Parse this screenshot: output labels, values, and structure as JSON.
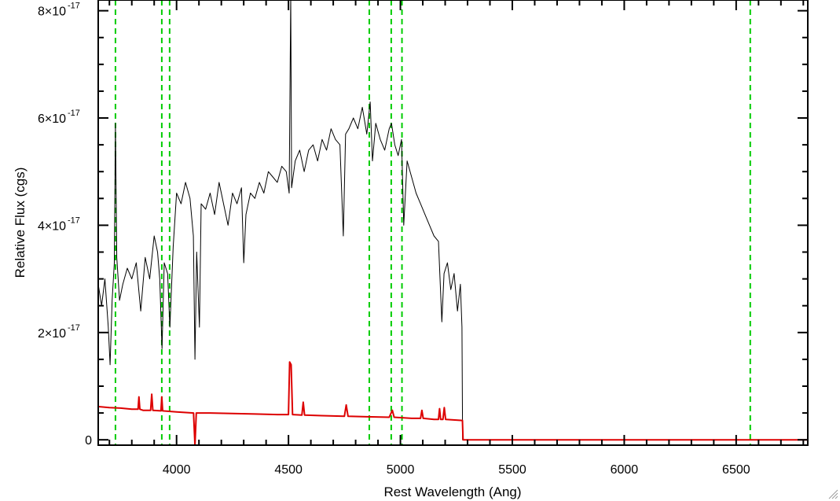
{
  "chart_data": {
    "type": "line",
    "title": "",
    "xlabel": "Rest Wavelength (Ang)",
    "ylabel": "Relative Flux (cgs)",
    "xlim": [
      3650,
      6820
    ],
    "ylim": [
      -1e-18,
      8.2e-17
    ],
    "x_ticks": [
      4000,
      4500,
      5000,
      5500,
      6000,
      6500
    ],
    "x_tick_labels": [
      "4000",
      "4500",
      "5000",
      "5500",
      "6000",
      "6500"
    ],
    "y_ticks": [
      0,
      2e-17,
      4e-17,
      6e-17,
      8e-17
    ],
    "y_tick_labels": [
      {
        "mant": "0",
        "exp": ""
      },
      {
        "mant": "2×10",
        "exp": "-17"
      },
      {
        "mant": "4×10",
        "exp": "-17"
      },
      {
        "mant": "6×10",
        "exp": "-17"
      },
      {
        "mant": "8×10",
        "exp": "-17"
      }
    ],
    "x_minor_step": 100,
    "y_minor_step": 5e-18,
    "grid": false,
    "reference_lines": {
      "color": "#00cc00",
      "style": "dashed",
      "x": [
        3727,
        3934,
        3969,
        4861,
        4959,
        5007,
        6563
      ]
    },
    "series": [
      {
        "color": "#000000",
        "points": [
          [
            3650,
            2.9e-17
          ],
          [
            3665,
            2.5e-17
          ],
          [
            3680,
            3e-17
          ],
          [
            3695,
            2.1e-17
          ],
          [
            3703,
            1.4e-17
          ],
          [
            3712,
            2.6e-17
          ],
          [
            3722,
            3.3e-17
          ],
          [
            3727,
            5.9e-17
          ],
          [
            3733,
            3.4e-17
          ],
          [
            3745,
            2.6e-17
          ],
          [
            3760,
            2.9e-17
          ],
          [
            3780,
            3.2e-17
          ],
          [
            3800,
            3e-17
          ],
          [
            3820,
            3.3e-17
          ],
          [
            3840,
            2.4e-17
          ],
          [
            3860,
            3.4e-17
          ],
          [
            3880,
            3e-17
          ],
          [
            3900,
            3.8e-17
          ],
          [
            3915,
            3.5e-17
          ],
          [
            3925,
            3e-17
          ],
          [
            3935,
            1.7e-17
          ],
          [
            3945,
            3.3e-17
          ],
          [
            3960,
            3.1e-17
          ],
          [
            3970,
            2.1e-17
          ],
          [
            3985,
            3.6e-17
          ],
          [
            4000,
            4.6e-17
          ],
          [
            4020,
            4.4e-17
          ],
          [
            4040,
            4.8e-17
          ],
          [
            4060,
            4.5e-17
          ],
          [
            4075,
            3.8e-17
          ],
          [
            4082,
            1.5e-17
          ],
          [
            4090,
            3.5e-17
          ],
          [
            4102,
            2.1e-17
          ],
          [
            4110,
            4.4e-17
          ],
          [
            4130,
            4.3e-17
          ],
          [
            4150,
            4.6e-17
          ],
          [
            4170,
            4.2e-17
          ],
          [
            4190,
            4.8e-17
          ],
          [
            4210,
            4.4e-17
          ],
          [
            4230,
            4e-17
          ],
          [
            4250,
            4.6e-17
          ],
          [
            4270,
            4.4e-17
          ],
          [
            4290,
            4.7e-17
          ],
          [
            4300,
            3.3e-17
          ],
          [
            4310,
            4.2e-17
          ],
          [
            4330,
            4.6e-17
          ],
          [
            4350,
            4.5e-17
          ],
          [
            4370,
            4.8e-17
          ],
          [
            4390,
            4.6e-17
          ],
          [
            4410,
            5e-17
          ],
          [
            4430,
            4.9e-17
          ],
          [
            4450,
            4.8e-17
          ],
          [
            4470,
            5.1e-17
          ],
          [
            4490,
            5e-17
          ],
          [
            4503,
            4.6e-17
          ],
          [
            4510,
            8.3e-17
          ],
          [
            4514,
            4.7e-17
          ],
          [
            4530,
            5.2e-17
          ],
          [
            4550,
            5.4e-17
          ],
          [
            4570,
            5e-17
          ],
          [
            4590,
            5.4e-17
          ],
          [
            4610,
            5.5e-17
          ],
          [
            4630,
            5.2e-17
          ],
          [
            4650,
            5.6e-17
          ],
          [
            4670,
            5.4e-17
          ],
          [
            4690,
            5.8e-17
          ],
          [
            4710,
            5.6e-17
          ],
          [
            4730,
            5.5e-17
          ],
          [
            4745,
            3.8e-17
          ],
          [
            4755,
            5.7e-17
          ],
          [
            4770,
            5.8e-17
          ],
          [
            4790,
            6e-17
          ],
          [
            4810,
            5.8e-17
          ],
          [
            4830,
            6.2e-17
          ],
          [
            4850,
            5.7e-17
          ],
          [
            4865,
            6.3e-17
          ],
          [
            4875,
            5.2e-17
          ],
          [
            4890,
            5.9e-17
          ],
          [
            4910,
            5.6e-17
          ],
          [
            4930,
            5.4e-17
          ],
          [
            4950,
            5.8e-17
          ],
          [
            4960,
            5.9e-17
          ],
          [
            4975,
            5.5e-17
          ],
          [
            4990,
            5.3e-17
          ],
          [
            5005,
            5.6e-17
          ],
          [
            5015,
            4e-17
          ],
          [
            5030,
            5.2e-17
          ],
          [
            5050,
            4.9e-17
          ],
          [
            5070,
            4.6e-17
          ],
          [
            5090,
            4.4e-17
          ],
          [
            5110,
            4.2e-17
          ],
          [
            5130,
            4e-17
          ],
          [
            5150,
            3.8e-17
          ],
          [
            5170,
            3.7e-17
          ],
          [
            5185,
            2.2e-17
          ],
          [
            5195,
            3.1e-17
          ],
          [
            5210,
            3.3e-17
          ],
          [
            5225,
            2.8e-17
          ],
          [
            5240,
            3.1e-17
          ],
          [
            5255,
            2.4e-17
          ],
          [
            5268,
            2.9e-17
          ],
          [
            5275,
            2.1e-17
          ],
          [
            5278,
            0.0
          ],
          [
            6820,
            0.0
          ]
        ]
      },
      {
        "color": "#dd0000",
        "points": [
          [
            3650,
            6.2e-18
          ],
          [
            3700,
            6e-18
          ],
          [
            3750,
            5.9e-18
          ],
          [
            3800,
            5.7e-18
          ],
          [
            3828,
            5.7e-18
          ],
          [
            3832,
            8e-18
          ],
          [
            3836,
            5.7e-18
          ],
          [
            3850,
            5.5e-18
          ],
          [
            3884,
            5.5e-18
          ],
          [
            3889,
            8.5e-18
          ],
          [
            3894,
            5.5e-18
          ],
          [
            3930,
            5.4e-18
          ],
          [
            3934,
            8e-18
          ],
          [
            3938,
            5.4e-18
          ],
          [
            4000,
            5.2e-18
          ],
          [
            4076,
            5e-18
          ],
          [
            4082,
            -1e-18
          ],
          [
            4088,
            5e-18
          ],
          [
            4150,
            5e-18
          ],
          [
            4250,
            4.9e-18
          ],
          [
            4350,
            4.8e-18
          ],
          [
            4450,
            4.7e-18
          ],
          [
            4500,
            4.7e-18
          ],
          [
            4505,
            1.45e-17
          ],
          [
            4512,
            1.4e-17
          ],
          [
            4518,
            4.7e-18
          ],
          [
            4560,
            4.6e-18
          ],
          [
            4566,
            7e-18
          ],
          [
            4572,
            4.6e-18
          ],
          [
            4650,
            4.5e-18
          ],
          [
            4750,
            4.4e-18
          ],
          [
            4758,
            6.5e-18
          ],
          [
            4766,
            4.4e-18
          ],
          [
            4850,
            4.3e-18
          ],
          [
            4950,
            4.2e-18
          ],
          [
            4964,
            5.5e-18
          ],
          [
            4972,
            4.2e-18
          ],
          [
            5050,
            4e-18
          ],
          [
            5090,
            4e-18
          ],
          [
            5096,
            5.5e-18
          ],
          [
            5102,
            4e-18
          ],
          [
            5150,
            3.8e-18
          ],
          [
            5170,
            3.8e-18
          ],
          [
            5175,
            5.8e-18
          ],
          [
            5180,
            3.8e-18
          ],
          [
            5190,
            3.8e-18
          ],
          [
            5196,
            6e-18
          ],
          [
            5202,
            3.8e-18
          ],
          [
            5277,
            3.6e-18
          ],
          [
            5280,
            0.0
          ],
          [
            6820,
            0.0
          ]
        ]
      }
    ]
  }
}
